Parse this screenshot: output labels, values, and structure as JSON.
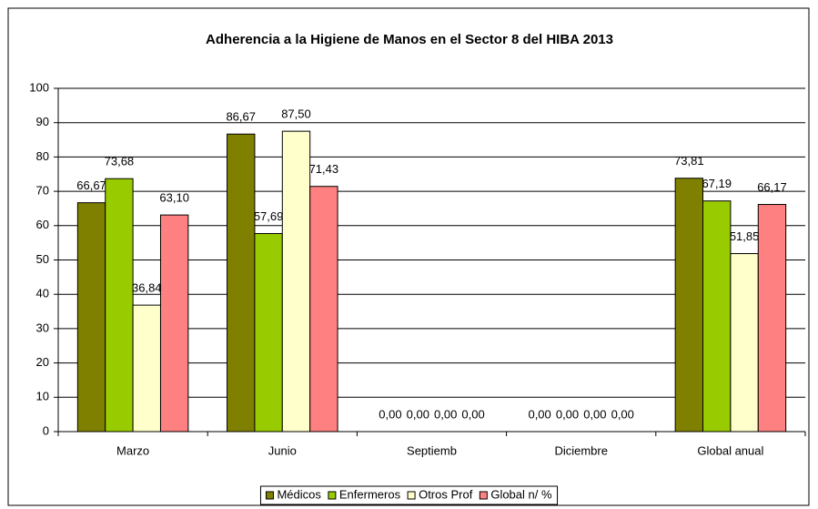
{
  "chart_data": {
    "type": "bar",
    "title": "Adherencia a la Higiene de Manos en el Sector 8 del HIBA 2013",
    "categories": [
      "Marzo",
      "Junio",
      "Septiemb",
      "Diciembre",
      "Global anual"
    ],
    "series": [
      {
        "name": "Médicos",
        "color": "#808000",
        "values": [
          66.67,
          86.67,
          0,
          0,
          73.81
        ],
        "value_labels": [
          "66,67",
          "86,67",
          "0,00",
          "0,00",
          "73,81"
        ]
      },
      {
        "name": "Enfermeros",
        "color": "#99cc00",
        "values": [
          73.68,
          57.69,
          0,
          0,
          67.19
        ],
        "value_labels": [
          "73,68",
          "57,69",
          "0,00",
          "0,00",
          "67,19"
        ]
      },
      {
        "name": "Otros Prof",
        "color": "#ffffcc",
        "values": [
          36.84,
          87.5,
          0,
          0,
          51.85
        ],
        "value_labels": [
          "36,84",
          "87,50",
          "0,00",
          "0,00",
          "51,85"
        ]
      },
      {
        "name": "Global n/ %",
        "color": "#ff8080",
        "values": [
          63.1,
          71.43,
          0,
          0,
          66.17
        ],
        "value_labels": [
          "63,10",
          "71,43",
          "0,00",
          "0,00",
          "66,17"
        ]
      }
    ],
    "ylim": [
      0,
      100
    ],
    "yticks": [
      0,
      10,
      20,
      30,
      40,
      50,
      60,
      70,
      80,
      90,
      100
    ],
    "grid": true,
    "legend": "bottom"
  }
}
